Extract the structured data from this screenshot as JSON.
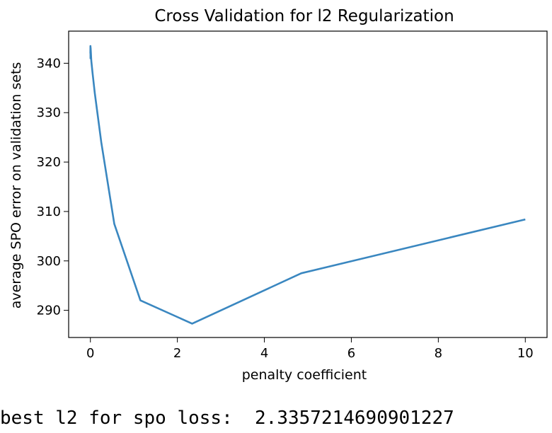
{
  "chart_data": {
    "type": "line",
    "title": "Cross Validation for l2 Regularization",
    "xlabel": "penalty coefficient",
    "ylabel": "average SPO error on validation sets",
    "xlim": [
      -0.5,
      10.5
    ],
    "ylim": [
      284.5,
      346.5
    ],
    "x_ticks": [
      0,
      2,
      4,
      6,
      8,
      10
    ],
    "y_ticks": [
      290,
      300,
      310,
      320,
      330,
      340
    ],
    "grid": false,
    "series": [
      {
        "color": "#3a87c0",
        "x": [
          0,
          0.001,
          0.002,
          0.005,
          0.01,
          0.02,
          0.05,
          0.1,
          0.25,
          0.55,
          1.15,
          2.34,
          4.85,
          10.0
        ],
        "y": [
          342.0,
          343.5,
          341.0,
          343.2,
          342.5,
          340.5,
          338.0,
          334.0,
          324.0,
          307.5,
          292.0,
          287.3,
          297.5,
          308.4
        ]
      }
    ]
  },
  "output": {
    "text": "best l2 for spo loss:  2.3357214690901227"
  }
}
